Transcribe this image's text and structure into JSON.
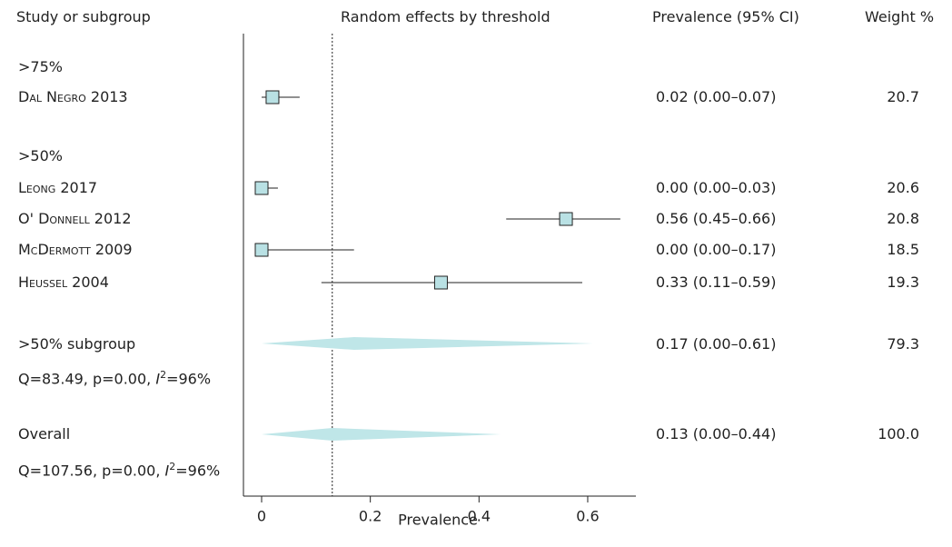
{
  "headers": {
    "study": "Study or subgroup",
    "plot": "Random effects by threshold",
    "prevalence": "Prevalence (95% CI)",
    "weight": "Weight %"
  },
  "groups": [
    {
      "label": ">75%"
    },
    {
      "label": ">50%"
    }
  ],
  "studies": [
    {
      "name": "Dal Negro 2013",
      "ci_text": "0.02 (0.00–0.07)",
      "weight": "20.7"
    },
    {
      "name": "Leong 2017",
      "ci_text": "0.00 (0.00–0.03)",
      "weight": "20.6"
    },
    {
      "name": "O' Donnell 2012",
      "ci_text": "0.56 (0.45–0.66)",
      "weight": "20.8"
    },
    {
      "name": "McDermott 2009",
      "ci_text": "0.00 (0.00–0.17)",
      "weight": "18.5"
    },
    {
      "name": "Heussel 2004",
      "ci_text": "0.33 (0.11–0.59)",
      "weight": "19.3"
    }
  ],
  "summaries": [
    {
      "label": ">50% subgroup",
      "ci_text": "0.17 (0.00–0.61)",
      "weight": "79.3",
      "stats_prefix": "Q=83.49, p=0.00, ",
      "stats_i": "I",
      "stats_sup": "2",
      "stats_suffix": "=96%"
    },
    {
      "label": "Overall",
      "ci_text": "0.13 (0.00–0.44)",
      "weight": "100.0",
      "stats_prefix": "Q=107.56, p=0.00, ",
      "stats_i": "I",
      "stats_sup": "2",
      "stats_suffix": "=96%"
    }
  ],
  "chart_data": {
    "type": "forest",
    "xlabel": "Prevalence",
    "xlim": [
      0,
      0.7
    ],
    "xticks": [
      0,
      0.2,
      0.4,
      0.6
    ],
    "xtick_labels": [
      "0",
      "0.2",
      "0.4",
      "0.6"
    ],
    "reference_line": 0.13,
    "studies": [
      {
        "name": "Dal Negro 2013",
        "estimate": 0.02,
        "lower": 0.0,
        "upper": 0.07
      },
      {
        "name": "Leong 2017",
        "estimate": 0.0,
        "lower": 0.0,
        "upper": 0.03
      },
      {
        "name": "O' Donnell 2012",
        "estimate": 0.56,
        "lower": 0.45,
        "upper": 0.66
      },
      {
        "name": "McDermott 2009",
        "estimate": 0.0,
        "lower": 0.0,
        "upper": 0.17
      },
      {
        "name": "Heussel 2004",
        "estimate": 0.33,
        "lower": 0.11,
        "upper": 0.59
      }
    ],
    "summaries": [
      {
        "name": ">50% subgroup",
        "estimate": 0.17,
        "lower": 0.0,
        "upper": 0.61
      },
      {
        "name": "Overall",
        "estimate": 0.13,
        "lower": 0.0,
        "upper": 0.44
      }
    ],
    "colors": {
      "marker_fill": "#b9e1e4",
      "diamond_fill": "#bfe6e8",
      "line": "#222222"
    }
  }
}
